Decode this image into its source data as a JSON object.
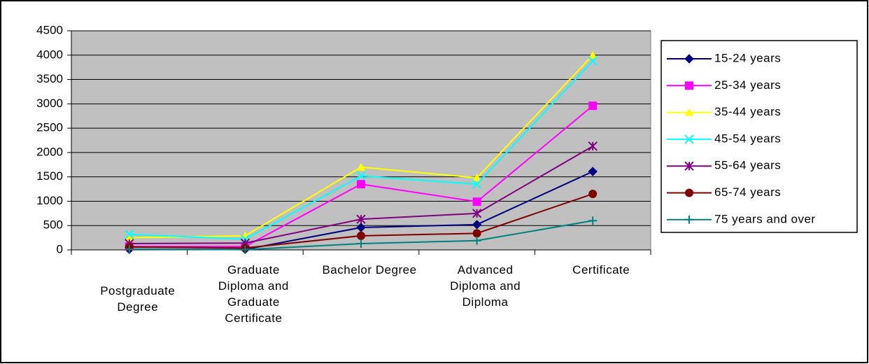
{
  "chart_data": {
    "type": "line",
    "categories": [
      "Postgraduate Degree",
      "Graduate Diploma and Graduate Certificate",
      "Bachelor Degree",
      "Advanced Diploma and Diploma",
      "Certificate"
    ],
    "series": [
      {
        "name": "15-24 years",
        "color": "#000080",
        "marker": "diamond",
        "values": [
          10,
          10,
          460,
          520,
          1610
        ]
      },
      {
        "name": "25-34 years",
        "color": "#ff00ff",
        "marker": "square",
        "values": [
          70,
          70,
          1350,
          990,
          2960
        ]
      },
      {
        "name": "35-44 years",
        "color": "#ffff00",
        "marker": "triangle",
        "values": [
          250,
          290,
          1700,
          1480,
          4000
        ]
      },
      {
        "name": "45-54 years",
        "color": "#00ffff",
        "marker": "x",
        "values": [
          320,
          220,
          1520,
          1350,
          3880
        ]
      },
      {
        "name": "55-64 years",
        "color": "#800080",
        "marker": "asterisk",
        "values": [
          130,
          140,
          630,
          750,
          2130
        ]
      },
      {
        "name": "65-74 years",
        "color": "#800000",
        "marker": "circle",
        "values": [
          60,
          40,
          290,
          340,
          1150
        ]
      },
      {
        "name": "75 years and over",
        "color": "#008080",
        "marker": "plus",
        "values": [
          15,
          5,
          130,
          190,
          600
        ]
      }
    ],
    "ylim": [
      0,
      4500
    ],
    "yticks": [
      0,
      500,
      1000,
      1500,
      2000,
      2500,
      3000,
      3500,
      4000,
      4500
    ],
    "grid": true,
    "plot_background": "#c0c0c0",
    "legend": "right"
  }
}
